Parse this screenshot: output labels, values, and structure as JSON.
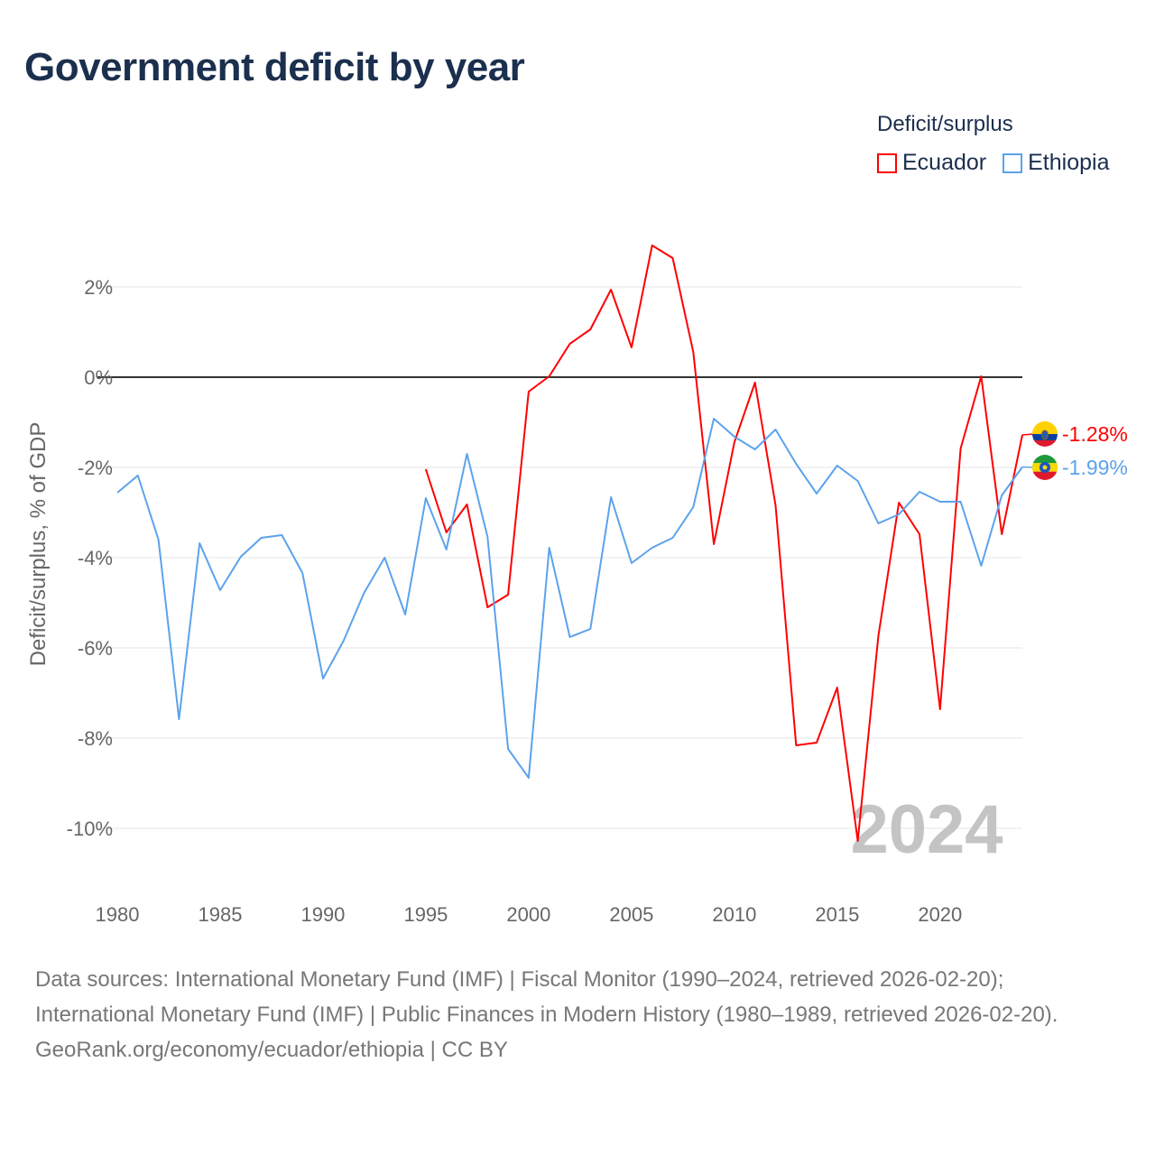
{
  "chart_data": {
    "type": "line",
    "title": "Government deficit by year",
    "ylabel": "Deficit/surplus, % of GDP",
    "xlabel": "",
    "legend_title": "Deficit/surplus",
    "legend_position": "top-right",
    "xlim": [
      1980,
      2024
    ],
    "ylim": [
      -11,
      3.5
    ],
    "x_ticks": [
      1980,
      1985,
      1990,
      1995,
      2000,
      2005,
      2010,
      2015,
      2020
    ],
    "x_tick_labels": [
      "1980",
      "1985",
      "1990",
      "1995",
      "2000",
      "2005",
      "2010",
      "2015",
      "2020"
    ],
    "y_ticks": [
      2,
      0,
      -2,
      -4,
      -6,
      -8,
      -10
    ],
    "y_tick_labels": [
      "2%",
      "0%",
      "-2%",
      "-4%",
      "-6%",
      "-8%",
      "-10%"
    ],
    "grid": true,
    "watermark": "2024",
    "series": [
      {
        "name": "Ecuador",
        "color": "#ff0000",
        "end_label": "-1.28%",
        "flag": "ecuador-flag",
        "x": [
          1995,
          1996,
          1997,
          1998,
          1999,
          2000,
          2001,
          2002,
          2003,
          2004,
          2005,
          2006,
          2007,
          2008,
          2009,
          2010,
          2011,
          2012,
          2013,
          2014,
          2015,
          2016,
          2017,
          2018,
          2019,
          2020,
          2021,
          2022,
          2023,
          2024
        ],
        "values": [
          -2.04,
          -3.44,
          -2.82,
          -5.1,
          -4.82,
          -0.32,
          0.02,
          0.74,
          1.06,
          1.94,
          0.66,
          2.92,
          2.64,
          0.56,
          -3.7,
          -1.44,
          -0.12,
          -2.84,
          -8.16,
          -8.1,
          -6.88,
          -10.28,
          -5.74,
          -2.78,
          -3.48,
          -7.36,
          -1.58,
          0.02,
          -3.48,
          -1.28
        ]
      },
      {
        "name": "Ethiopia",
        "color": "#5ba3ec",
        "end_label": "-1.99%",
        "flag": "ethiopia-flag",
        "x": [
          1980,
          1981,
          1982,
          1983,
          1984,
          1985,
          1986,
          1987,
          1988,
          1989,
          1990,
          1991,
          1992,
          1993,
          1994,
          1995,
          1996,
          1997,
          1998,
          1999,
          2000,
          2001,
          2002,
          2003,
          2004,
          2005,
          2006,
          2007,
          2008,
          2009,
          2010,
          2011,
          2012,
          2013,
          2014,
          2015,
          2016,
          2017,
          2018,
          2019,
          2020,
          2021,
          2022,
          2023,
          2024
        ],
        "values": [
          -2.56,
          -2.18,
          -3.6,
          -7.58,
          -3.68,
          -4.72,
          -3.98,
          -3.56,
          -3.5,
          -4.34,
          -6.68,
          -5.84,
          -4.78,
          -4.0,
          -5.26,
          -2.68,
          -3.82,
          -1.7,
          -3.54,
          -8.24,
          -8.88,
          -3.78,
          -5.76,
          -5.58,
          -2.66,
          -4.12,
          -3.78,
          -3.56,
          -2.88,
          -0.92,
          -1.32,
          -1.6,
          -1.16,
          -1.92,
          -2.58,
          -1.96,
          -2.3,
          -3.24,
          -3.04,
          -2.54,
          -2.76,
          -2.76,
          -4.18,
          -2.62,
          -1.99
        ]
      }
    ]
  },
  "footer": {
    "sources": "Data sources: International Monetary Fund (IMF) | Fiscal Monitor (1990–2024, retrieved 2026-02-20); International Monetary Fund (IMF) | Public Finances in Modern History (1980–1989, retrieved 2026-02-20).",
    "credit": "GeoRank.org/economy/ecuador/ethiopia | CC BY"
  }
}
